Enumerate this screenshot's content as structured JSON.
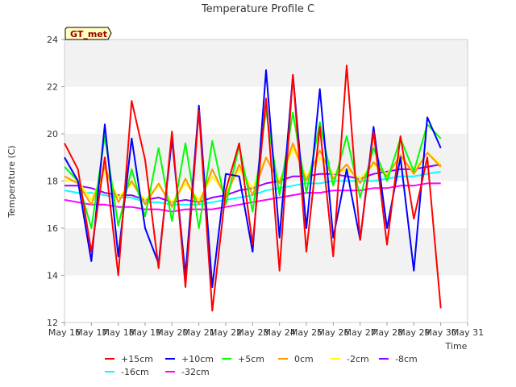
{
  "chart_data": {
    "type": "line",
    "title": "Temperature Profile C",
    "xlabel": "Time",
    "ylabel": "Temperature (C)",
    "ylim": [
      12,
      24
    ],
    "xlim": [
      "May 16",
      "May 31"
    ],
    "grid": "horizontal bands",
    "legend": "bottom",
    "site_label": "GT_met",
    "x_ticks": [
      "May 16",
      "May 17",
      "May 18",
      "May 19",
      "May 20",
      "May 21",
      "May 22",
      "May 23",
      "May 24",
      "May 25",
      "May 26",
      "May 27",
      "May 28",
      "May 29",
      "May 30",
      "May 31"
    ],
    "y_ticks": [
      12,
      14,
      16,
      18,
      20,
      22,
      24
    ],
    "x_days": [
      16.0,
      16.5,
      17.0,
      17.5,
      18.0,
      18.5,
      19.0,
      19.5,
      20.0,
      20.5,
      21.0,
      21.5,
      22.0,
      22.5,
      23.0,
      23.5,
      24.0,
      24.5,
      25.0,
      25.5,
      26.0,
      26.5,
      27.0,
      27.5,
      28.0,
      28.5,
      29.0,
      29.5,
      30.0
    ],
    "series": [
      {
        "name": "+15cm",
        "color": "#ff0000",
        "values": [
          19.6,
          18.5,
          15.0,
          19.0,
          14.0,
          21.4,
          18.9,
          14.3,
          20.1,
          13.5,
          21.0,
          12.5,
          17.6,
          19.6,
          15.3,
          21.5,
          14.2,
          22.5,
          15.0,
          20.3,
          14.8,
          22.9,
          15.5,
          20.1,
          15.3,
          19.9,
          16.4,
          19.0,
          12.6
        ]
      },
      {
        "name": "+10cm",
        "color": "#0000ff",
        "values": [
          19.0,
          18.0,
          14.6,
          20.4,
          14.8,
          19.8,
          16.0,
          14.5,
          19.8,
          14.0,
          21.2,
          13.5,
          18.3,
          18.2,
          15.0,
          22.7,
          15.6,
          22.5,
          16.0,
          21.9,
          15.6,
          18.5,
          15.5,
          20.3,
          16.0,
          19.0,
          14.2,
          20.7,
          19.4
        ]
      },
      {
        "name": "+5cm",
        "color": "#00ff00",
        "values": [
          18.6,
          18.0,
          16.0,
          19.9,
          16.1,
          18.5,
          16.5,
          19.4,
          16.3,
          19.6,
          16.0,
          19.7,
          17.0,
          19.5,
          16.7,
          21.0,
          17.4,
          20.9,
          17.5,
          20.5,
          17.8,
          19.9,
          17.3,
          19.4,
          18.0,
          19.8,
          18.4,
          20.4,
          19.8
        ]
      },
      {
        "name": "0cm",
        "color": "#ff9900",
        "values": [
          18.2,
          17.9,
          17.0,
          18.6,
          17.1,
          18.0,
          17.0,
          17.9,
          16.9,
          18.1,
          17.0,
          18.5,
          17.3,
          18.7,
          17.4,
          19.0,
          17.9,
          19.6,
          18.0,
          19.3,
          18.1,
          18.7,
          17.9,
          18.8,
          18.2,
          19.1,
          18.3,
          19.2,
          18.6
        ]
      },
      {
        "name": "-2cm",
        "color": "#ffff00",
        "values": [
          18.0,
          18.0,
          17.2,
          18.4,
          17.3,
          17.9,
          17.2,
          17.8,
          17.1,
          17.9,
          17.2,
          18.2,
          17.5,
          18.5,
          17.7,
          19.0,
          18.0,
          19.4,
          18.2,
          19.0,
          18.3,
          18.5,
          18.1,
          18.7,
          18.3,
          19.0,
          18.4,
          19.2,
          18.7
        ]
      },
      {
        "name": "-8cm",
        "color": "#9900ff",
        "values": [
          17.8,
          17.8,
          17.7,
          17.5,
          17.4,
          17.4,
          17.2,
          17.3,
          17.1,
          17.2,
          17.1,
          17.3,
          17.4,
          17.6,
          17.7,
          17.9,
          18.0,
          18.2,
          18.2,
          18.3,
          18.3,
          18.2,
          18.1,
          18.3,
          18.4,
          18.5,
          18.5,
          18.6,
          18.7
        ]
      },
      {
        "name": "-16cm",
        "color": "#00ffff",
        "values": [
          17.6,
          17.5,
          17.5,
          17.4,
          17.3,
          17.3,
          17.1,
          17.1,
          17.0,
          17.0,
          17.0,
          17.1,
          17.2,
          17.3,
          17.4,
          17.6,
          17.7,
          17.8,
          17.9,
          17.9,
          18.0,
          18.0,
          18.0,
          18.0,
          18.1,
          18.2,
          18.2,
          18.3,
          18.4
        ]
      },
      {
        "name": "-32cm",
        "color": "#ff00ff",
        "values": [
          17.2,
          17.1,
          17.0,
          17.0,
          16.9,
          16.9,
          16.8,
          16.8,
          16.7,
          16.8,
          16.8,
          16.8,
          16.9,
          17.0,
          17.1,
          17.2,
          17.3,
          17.4,
          17.5,
          17.5,
          17.6,
          17.6,
          17.6,
          17.7,
          17.7,
          17.8,
          17.8,
          17.9,
          17.9
        ]
      }
    ]
  }
}
